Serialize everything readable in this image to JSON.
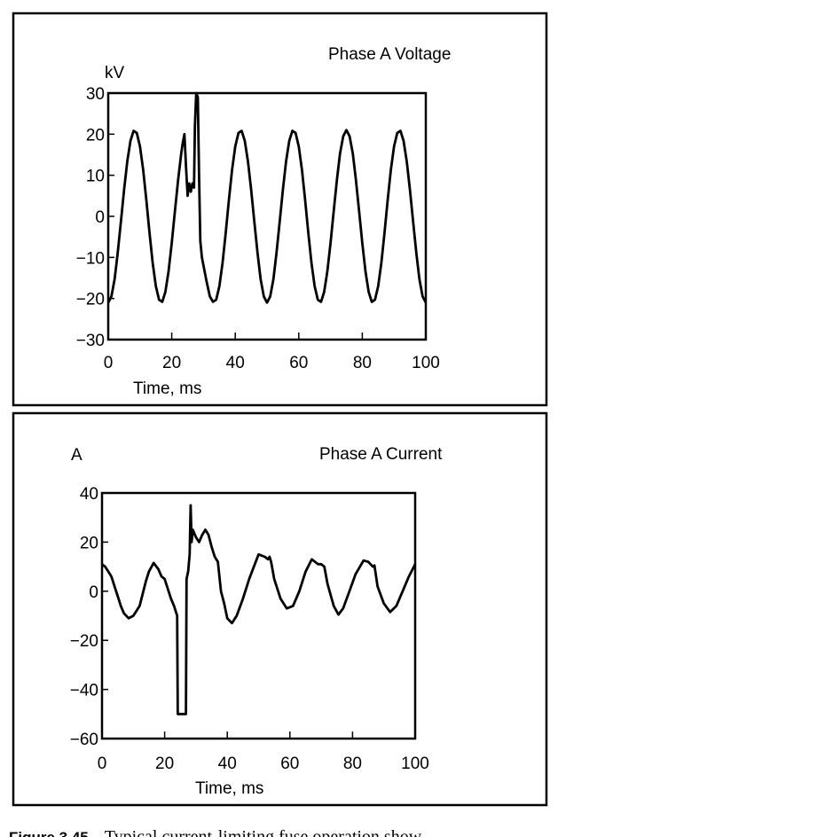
{
  "chart_data": [
    {
      "type": "line",
      "title": "Phase A Voltage",
      "xlabel": "Time, ms",
      "ylabel": "kV",
      "xlim": [
        0,
        100
      ],
      "ylim": [
        -30,
        30
      ],
      "xticks": [
        0,
        20,
        40,
        60,
        80,
        100
      ],
      "xtick_labels": [
        "0",
        "20",
        "40",
        "60",
        "80",
        "100"
      ],
      "yticks": [
        30,
        20,
        10,
        0,
        -10,
        -20,
        -30
      ],
      "ytick_labels": [
        "30",
        "20",
        "10",
        "0",
        "−10",
        "−20",
        "−30"
      ],
      "grid": false,
      "series": [
        {
          "name": "Phase A Voltage",
          "x": [
            0,
            1,
            2,
            3,
            4,
            5,
            6,
            7,
            8,
            9,
            10,
            11,
            12,
            13,
            14,
            15,
            16,
            17,
            18,
            19,
            20,
            21,
            22,
            23,
            23.5,
            24,
            24.5,
            25,
            25.5,
            26,
            26.5,
            27,
            27.3,
            27.7,
            28.2,
            28.6,
            29,
            29.5,
            30,
            31,
            32,
            33,
            34,
            35,
            36,
            37,
            38,
            39,
            40,
            41,
            42,
            43,
            44,
            45,
            46,
            47,
            48,
            49,
            50,
            51,
            52,
            53,
            54,
            55,
            56,
            57,
            58,
            59,
            60,
            61,
            62,
            63,
            64,
            65,
            66,
            67,
            68,
            69,
            70,
            71,
            72,
            73,
            74,
            75,
            76,
            77,
            78,
            79,
            80,
            81,
            82,
            83,
            84,
            85,
            86,
            87,
            88,
            89,
            90,
            91,
            92,
            93,
            94,
            95,
            96,
            97,
            98,
            99,
            100
          ],
          "y": [
            -21,
            -19.5,
            -15.3,
            -8.9,
            -1.3,
            6.5,
            13.4,
            18.4,
            20.8,
            20.3,
            17.0,
            11.3,
            3.9,
            -3.9,
            -11.3,
            -17.0,
            -20.3,
            -20.8,
            -18.4,
            -13.4,
            -6.5,
            1.3,
            8.9,
            15.3,
            18,
            20,
            12,
            5,
            8,
            6,
            8,
            7,
            22,
            30,
            29,
            10,
            -6,
            -10,
            -12,
            -16,
            -19.5,
            -20.8,
            -20.3,
            -17.0,
            -11.3,
            -3.9,
            3.9,
            11.3,
            17.0,
            20.3,
            20.8,
            18.4,
            13.4,
            6.5,
            -1.3,
            -8.9,
            -15.3,
            -19.5,
            -21,
            -19.5,
            -15.3,
            -8.9,
            -1.3,
            6.5,
            13.4,
            18.4,
            20.8,
            20.3,
            17.0,
            11.3,
            3.9,
            -3.9,
            -11.3,
            -17.0,
            -20.3,
            -20.8,
            -18.4,
            -13.4,
            -6.5,
            1.3,
            8.9,
            15.3,
            19.5,
            21,
            19.5,
            15.3,
            8.9,
            1.3,
            -6.5,
            -13.4,
            -18.4,
            -20.8,
            -20.3,
            -17.0,
            -11.3,
            -3.9,
            3.9,
            11.3,
            17.0,
            20.3,
            20.8,
            18.4,
            13.4,
            6.5,
            -1.3,
            -8.9,
            -15.3,
            -19.5,
            -21
          ]
        }
      ]
    },
    {
      "type": "line",
      "title": "Phase A Current",
      "xlabel": "Time, ms",
      "ylabel": "A",
      "xlim": [
        0,
        100
      ],
      "ylim": [
        -60,
        40
      ],
      "xticks": [
        0,
        20,
        40,
        60,
        80,
        100
      ],
      "xtick_labels": [
        "0",
        "20",
        "40",
        "60",
        "80",
        "100"
      ],
      "yticks": [
        40,
        20,
        0,
        -20,
        -40,
        -60
      ],
      "ytick_labels": [
        "40",
        "20",
        "0",
        "−20",
        "−40",
        "−60"
      ],
      "grid": false,
      "series": [
        {
          "name": "Phase A Current",
          "x": [
            0,
            1,
            2,
            3,
            4,
            5,
            6,
            7,
            8.5,
            10,
            12,
            13,
            14,
            15,
            16.5,
            18,
            19,
            20,
            22,
            23,
            24,
            24.2,
            26.8,
            27,
            27.5,
            28,
            28.3,
            28.6,
            29,
            30,
            31,
            32,
            33,
            34,
            35,
            36,
            37,
            38,
            39,
            40,
            41.5,
            43,
            45,
            47,
            48.5,
            50,
            52,
            53,
            53.5,
            54,
            55,
            57,
            59,
            61,
            63,
            65,
            67,
            69,
            70,
            71,
            72,
            74,
            75.5,
            77,
            79,
            81,
            83.5,
            85,
            86.5,
            87,
            88,
            90,
            92,
            94,
            96,
            98,
            100
          ],
          "y": [
            11,
            10,
            8,
            6,
            2,
            -2,
            -6,
            -9,
            -11,
            -10,
            -6,
            -1,
            4,
            8,
            11.5,
            9,
            6,
            5,
            -3,
            -6,
            -10,
            -50,
            -50,
            5,
            8,
            15,
            35,
            20,
            25,
            22,
            20,
            23,
            25,
            23,
            18,
            14,
            12,
            0,
            -5,
            -11,
            -13,
            -10,
            -3,
            5,
            10,
            15,
            14,
            13,
            14,
            12,
            5,
            -3,
            -7,
            -6,
            0,
            8,
            13,
            11,
            11,
            10,
            3,
            -6,
            -9.5,
            -7,
            0,
            7,
            12.5,
            12,
            10,
            10.5,
            2,
            -5,
            -8.5,
            -6,
            0,
            6,
            11
          ]
        }
      ]
    }
  ],
  "caption": {
    "label": "Figure 3.45",
    "text": "Typical current-limiting fuse operation show-"
  }
}
